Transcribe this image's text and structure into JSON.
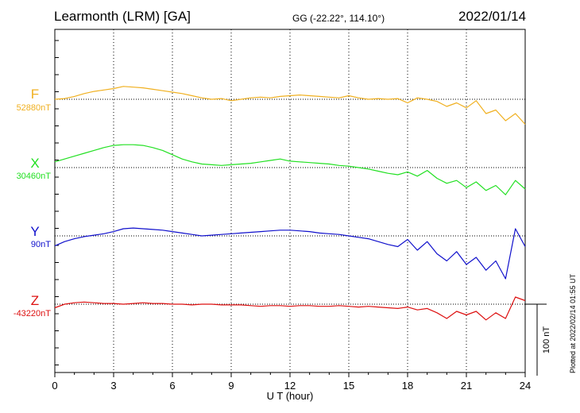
{
  "header": {
    "station": "Learmonth (LRM)  [GA]",
    "coords": "GG (-22.22°, 114.10°)",
    "date": "2022/01/14"
  },
  "footer": {
    "plotted": "Plotted at 2022/02/14 01:55 UT"
  },
  "colors": {
    "F": "#f0b020",
    "X": "#22e022",
    "Y": "#1010cc",
    "Z": "#dd1010"
  },
  "chart_data": {
    "type": "line",
    "xlabel": "U T (hour)",
    "xlim": [
      0,
      24
    ],
    "xticks": [
      "0",
      "3",
      "6",
      "9",
      "12",
      "15",
      "18",
      "21",
      "24"
    ],
    "grid": true,
    "scale_bar": {
      "label": "100 nT",
      "value_nT": 100
    },
    "series": [
      {
        "name": "F",
        "baseline_label": "52880nT",
        "x": [
          0,
          0.5,
          1,
          1.5,
          2,
          2.5,
          3,
          3.5,
          4,
          4.5,
          5,
          5.5,
          6,
          6.5,
          7,
          7.5,
          8,
          8.5,
          9,
          9.5,
          10,
          10.5,
          11,
          11.5,
          12,
          12.5,
          13,
          13.5,
          14,
          14.5,
          15,
          15.5,
          16,
          16.5,
          17,
          17.5,
          18,
          18.5,
          19,
          19.5,
          20,
          20.5,
          21,
          21.5,
          22,
          22.5,
          23,
          23.5,
          24
        ],
        "y": [
          0,
          1,
          4,
          8,
          11,
          13,
          15,
          18,
          17,
          16,
          14,
          12,
          10,
          8,
          5,
          2,
          0,
          1,
          -2,
          0,
          2,
          3,
          2,
          4,
          5,
          6,
          5,
          4,
          3,
          2,
          5,
          2,
          0,
          1,
          0,
          1,
          -5,
          2,
          0,
          -3,
          -10,
          -5,
          -12,
          -2,
          -20,
          -15,
          -30,
          -20,
          -35
        ]
      },
      {
        "name": "X",
        "baseline_label": "30460nT",
        "x": [
          0,
          0.5,
          1,
          1.5,
          2,
          2.5,
          3,
          3.5,
          4,
          4.5,
          5,
          5.5,
          6,
          6.5,
          7,
          7.5,
          8,
          8.5,
          9,
          9.5,
          10,
          10.5,
          11,
          11.5,
          12,
          12.5,
          13,
          13.5,
          14,
          14.5,
          15,
          15.5,
          16,
          16.5,
          17,
          17.5,
          18,
          18.5,
          19,
          19.5,
          20,
          20.5,
          21,
          21.5,
          22,
          22.5,
          23,
          23.5,
          24
        ],
        "y": [
          8,
          12,
          16,
          20,
          24,
          28,
          31,
          32,
          32,
          31,
          28,
          24,
          18,
          12,
          8,
          5,
          4,
          3,
          4,
          5,
          6,
          8,
          10,
          12,
          9,
          8,
          7,
          6,
          5,
          3,
          2,
          0,
          -2,
          -5,
          -8,
          -10,
          -6,
          -12,
          -4,
          -15,
          -22,
          -18,
          -28,
          -20,
          -32,
          -25,
          -38,
          -18,
          -30
        ]
      },
      {
        "name": "Y",
        "baseline_label": "90nT",
        "x": [
          0,
          0.5,
          1,
          1.5,
          2,
          2.5,
          3,
          3.5,
          4,
          4.5,
          5,
          5.5,
          6,
          6.5,
          7,
          7.5,
          8,
          8.5,
          9,
          9.5,
          10,
          10.5,
          11,
          11.5,
          12,
          12.5,
          13,
          13.5,
          14,
          14.5,
          15,
          15.5,
          16,
          16.5,
          17,
          17.5,
          18,
          18.5,
          19,
          19.5,
          20,
          20.5,
          21,
          21.5,
          22,
          22.5,
          23,
          23.5,
          24
        ],
        "y": [
          -14,
          -8,
          -4,
          -1,
          1,
          3,
          6,
          10,
          11,
          10,
          9,
          8,
          6,
          4,
          2,
          0,
          1,
          2,
          3,
          4,
          5,
          6,
          7,
          8,
          8,
          7,
          6,
          4,
          3,
          2,
          0,
          -2,
          -4,
          -8,
          -12,
          -15,
          -5,
          -20,
          -8,
          -25,
          -35,
          -22,
          -40,
          -30,
          -48,
          -35,
          -60,
          10,
          -15
        ]
      },
      {
        "name": "Z",
        "baseline_label": "-43220nT",
        "x": [
          0,
          0.5,
          1,
          1.5,
          2,
          2.5,
          3,
          3.5,
          4,
          4.5,
          5,
          5.5,
          6,
          6.5,
          7,
          7.5,
          8,
          8.5,
          9,
          9.5,
          10,
          10.5,
          11,
          11.5,
          12,
          12.5,
          13,
          13.5,
          14,
          14.5,
          15,
          15.5,
          16,
          16.5,
          17,
          17.5,
          18,
          18.5,
          19,
          19.5,
          20,
          20.5,
          21,
          21.5,
          22,
          22.5,
          23,
          23.5,
          24
        ],
        "y": [
          -5,
          0,
          2,
          3,
          2,
          1,
          1,
          0,
          1,
          2,
          1,
          1,
          0,
          0,
          -1,
          0,
          0,
          -1,
          -1,
          -1,
          -2,
          -3,
          -2,
          -2,
          -3,
          -2,
          -2,
          -3,
          -3,
          -2,
          -3,
          -4,
          -3,
          -4,
          -5,
          -6,
          -4,
          -8,
          -6,
          -12,
          -20,
          -10,
          -15,
          -10,
          -22,
          -12,
          -20,
          10,
          5
        ]
      }
    ]
  }
}
